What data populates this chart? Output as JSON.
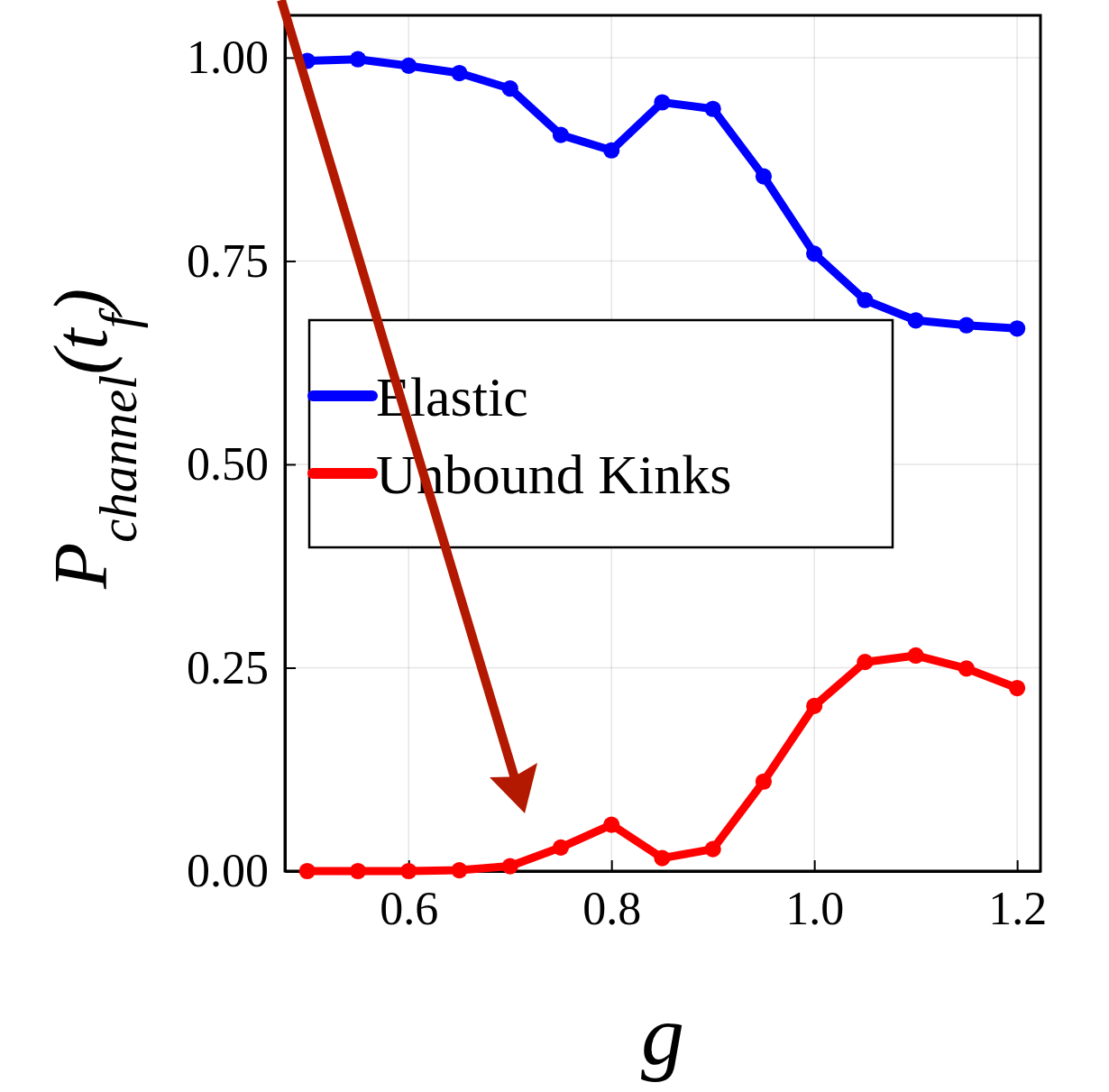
{
  "chart_data": {
    "type": "line",
    "xlabel": "g",
    "ylabel": "P$_{channel}$(t$_{f}$)",
    "x": [
      0.5,
      0.55,
      0.6,
      0.65,
      0.7,
      0.75,
      0.8,
      0.85,
      0.9,
      0.95,
      1.0,
      1.05,
      1.1,
      1.15,
      1.2
    ],
    "series": [
      {
        "name": "Elastic",
        "color": "#0000ff",
        "values": [
          0.996,
          0.998,
          0.99,
          0.981,
          0.962,
          0.905,
          0.886,
          0.945,
          0.937,
          0.854,
          0.759,
          0.702,
          0.677,
          0.671,
          0.667
        ]
      },
      {
        "name": "Unbound Kinks",
        "color": "#ff0000",
        "values": [
          0.0,
          0.0,
          0.0,
          0.001,
          0.006,
          0.029,
          0.057,
          0.016,
          0.027,
          0.11,
          0.203,
          0.257,
          0.265,
          0.249,
          0.225
        ]
      }
    ],
    "xlim": [
      0.478,
      1.223
    ],
    "ylim": [
      0,
      1.052
    ],
    "xticks": [
      {
        "value": 0.6,
        "label": "0.6"
      },
      {
        "value": 0.8,
        "label": "0.8"
      },
      {
        "value": 1.0,
        "label": "1.0"
      },
      {
        "value": 1.2,
        "label": "1.2"
      }
    ],
    "yticks": [
      {
        "value": 0,
        "label": "0.00"
      },
      {
        "value": 0.25,
        "label": "0.25"
      },
      {
        "value": 0.5,
        "label": "0.50"
      },
      {
        "value": 0.75,
        "label": "0.75"
      },
      {
        "value": 1.0,
        "label": "1.00"
      }
    ],
    "grid": true,
    "legend": "left",
    "marker": "circle",
    "line_style": "solid"
  }
}
